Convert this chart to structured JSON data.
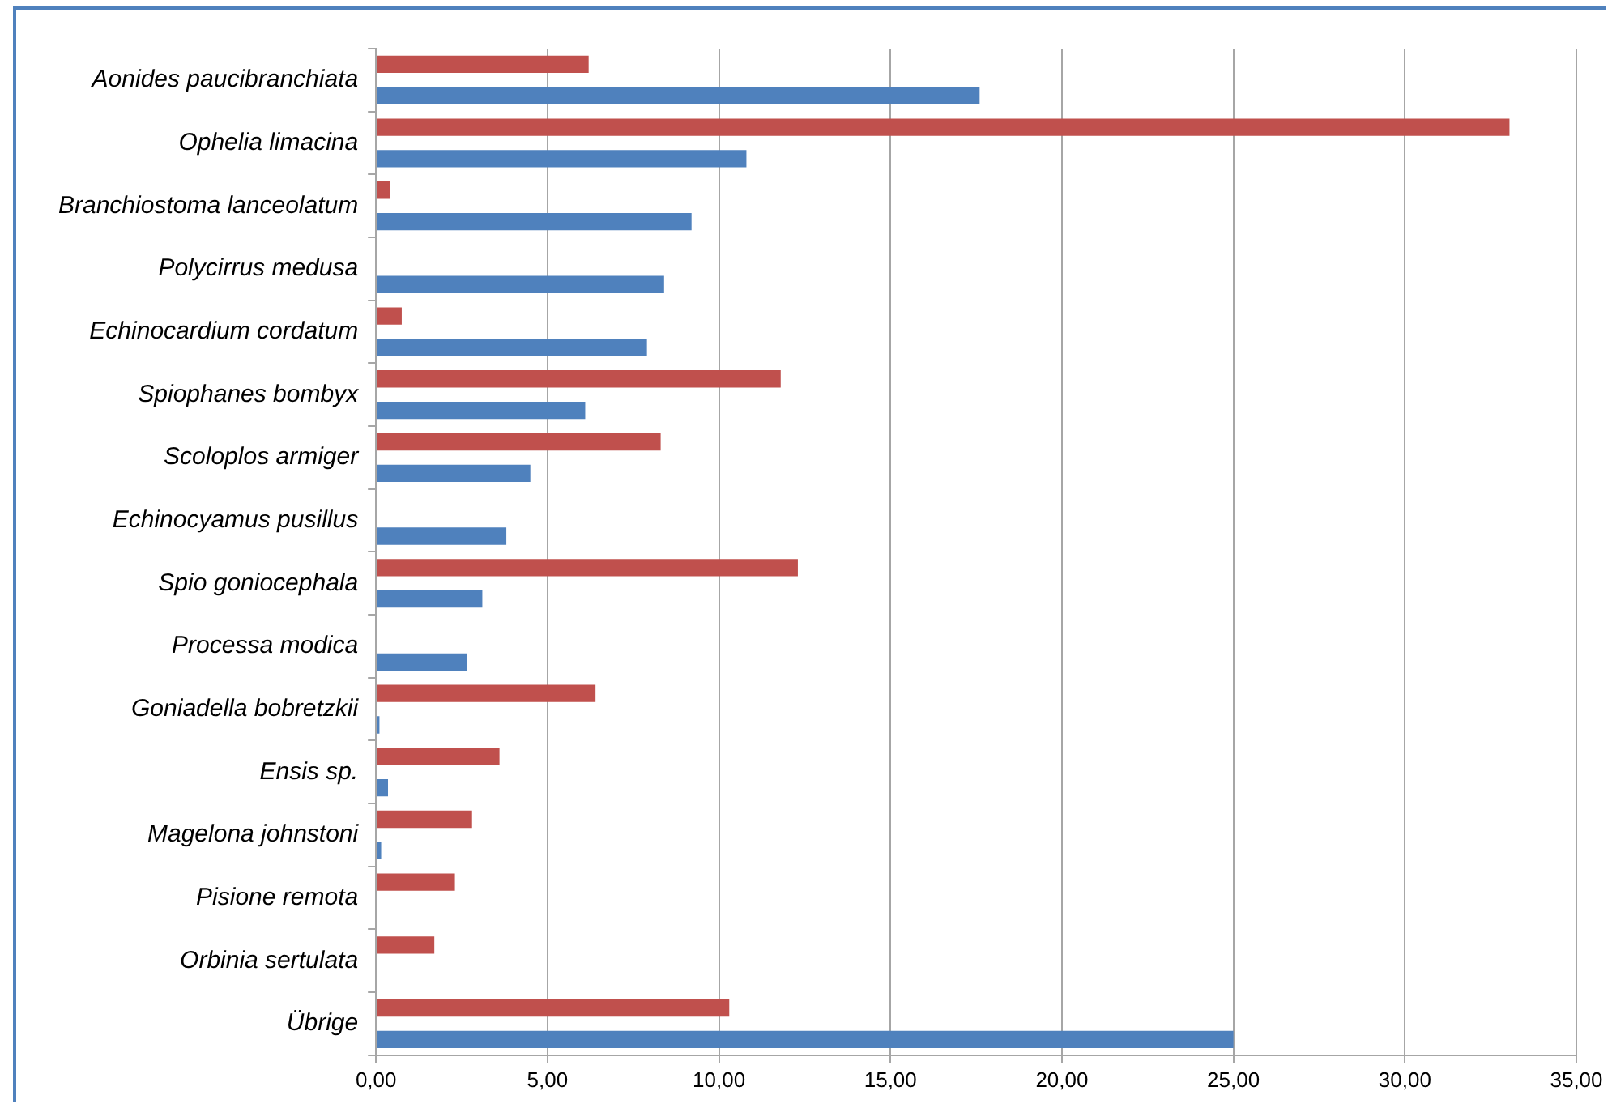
{
  "chart_data": {
    "type": "bar",
    "orientation": "horizontal",
    "categories": [
      "Aonides paucibranchiata",
      "Ophelia limacina",
      "Branchiostoma lanceolatum",
      "Polycirrus medusa",
      "Echinocardium cordatum",
      "Spiophanes bombyx",
      "Scoloplos armiger",
      "Echinocyamus pusillus",
      "Spio goniocephala",
      "Processa modica",
      "Goniadella bobretzkii",
      "Ensis sp.",
      "Magelona johnstoni",
      "Pisione remota",
      "Orbinia sertulata",
      "Übrige"
    ],
    "series": [
      {
        "color": "#c0504d",
        "values": [
          6.2,
          33.05,
          0.4,
          0,
          0.75,
          11.8,
          8.3,
          0,
          12.3,
          0,
          6.4,
          3.6,
          2.8,
          2.3,
          1.7,
          10.3
        ]
      },
      {
        "color": "#4f81bd",
        "values": [
          17.6,
          10.8,
          9.2,
          8.4,
          7.9,
          6.1,
          4.5,
          3.8,
          3.1,
          2.65,
          0.1,
          0.35,
          0.15,
          0,
          0,
          25.0
        ]
      }
    ],
    "xlim": [
      0,
      35
    ],
    "xticks": [
      {
        "value": 0,
        "label": "0,00"
      },
      {
        "value": 5,
        "label": "5,00"
      },
      {
        "value": 10,
        "label": "10,00"
      },
      {
        "value": 15,
        "label": "15,00"
      },
      {
        "value": 20,
        "label": "20,00"
      },
      {
        "value": 25,
        "label": "25,00"
      },
      {
        "value": 30,
        "label": "30,00"
      },
      {
        "value": 35,
        "label": "35,00"
      }
    ],
    "grid": "x",
    "legend": false
  }
}
